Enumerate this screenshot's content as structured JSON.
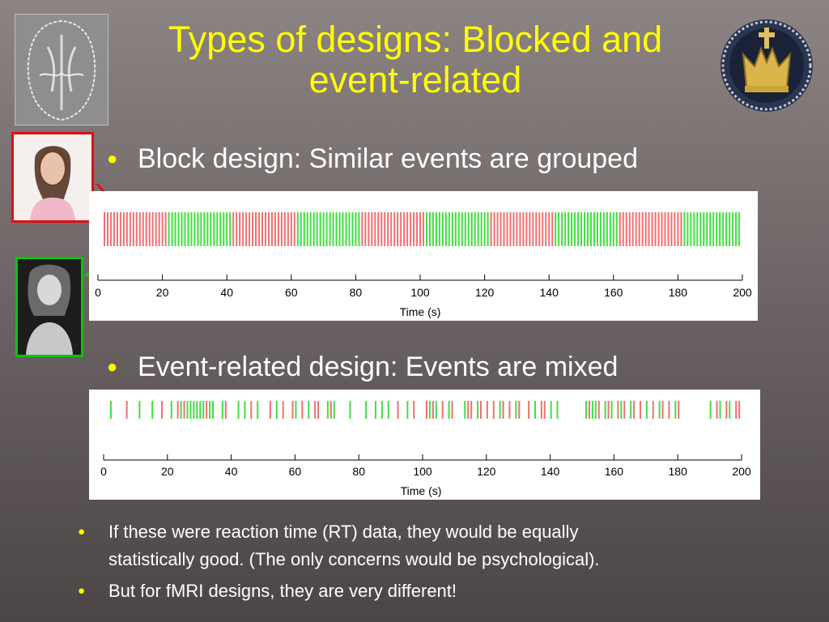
{
  "slide": {
    "title_line1": "Types of designs: Blocked and",
    "title_line2": "event-related",
    "bullet1": "Block design: Similar events are grouped",
    "bullet2": "Event-related design: Events are mixed",
    "bullet3_line1": "If these were reaction time (RT) data, they would be equally",
    "bullet3_line2": "statistically good.  (The only concerns would be psychological).",
    "bullet4": "But for fMRI designs, they are very different!",
    "bullet_glyph": "●",
    "colors": {
      "title": "#ffff00",
      "text": "#ffffff",
      "red_event": "#f07070",
      "green_event": "#40e040"
    }
  },
  "chart_data": [
    {
      "type": "bar",
      "title": "",
      "xlabel": "Time (s)",
      "ylabel": "",
      "xlim": [
        0,
        200
      ],
      "xticks": [
        0,
        20,
        40,
        60,
        80,
        100,
        120,
        140,
        160,
        180,
        200
      ],
      "block_length_s": 20,
      "event_spacing_s": 2,
      "blocks": [
        {
          "start": 0,
          "end": 20,
          "condition": "red"
        },
        {
          "start": 20,
          "end": 40,
          "condition": "green"
        },
        {
          "start": 40,
          "end": 60,
          "condition": "red"
        },
        {
          "start": 60,
          "end": 80,
          "condition": "green"
        },
        {
          "start": 80,
          "end": 100,
          "condition": "red"
        },
        {
          "start": 100,
          "end": 120,
          "condition": "green"
        },
        {
          "start": 120,
          "end": 140,
          "condition": "red"
        },
        {
          "start": 140,
          "end": 160,
          "condition": "green"
        },
        {
          "start": 160,
          "end": 180,
          "condition": "red"
        },
        {
          "start": 180,
          "end": 200,
          "condition": "green"
        }
      ]
    },
    {
      "type": "bar",
      "title": "",
      "xlabel": "Time (s)",
      "ylabel": "",
      "xlim": [
        0,
        200
      ],
      "xticks": [
        0,
        20,
        40,
        60,
        80,
        100,
        120,
        140,
        160,
        180,
        200
      ],
      "events": [
        {
          "t": 1,
          "c": "g"
        },
        {
          "t": 6,
          "c": "r"
        },
        {
          "t": 10,
          "c": "g"
        },
        {
          "t": 14,
          "c": "g"
        },
        {
          "t": 17,
          "c": "r"
        },
        {
          "t": 20,
          "c": "g"
        },
        {
          "t": 22,
          "c": "r"
        },
        {
          "t": 23,
          "c": "g"
        },
        {
          "t": 24,
          "c": "r"
        },
        {
          "t": 25,
          "c": "g"
        },
        {
          "t": 26,
          "c": "g"
        },
        {
          "t": 27,
          "c": "g"
        },
        {
          "t": 28,
          "c": "g"
        },
        {
          "t": 29,
          "c": "g"
        },
        {
          "t": 30,
          "c": "g"
        },
        {
          "t": 31,
          "c": "r"
        },
        {
          "t": 32,
          "c": "g"
        },
        {
          "t": 33,
          "c": "g"
        },
        {
          "t": 36,
          "c": "g"
        },
        {
          "t": 37,
          "c": "r"
        },
        {
          "t": 41,
          "c": "g"
        },
        {
          "t": 43,
          "c": "g"
        },
        {
          "t": 45,
          "c": "r"
        },
        {
          "t": 47,
          "c": "g"
        },
        {
          "t": 51,
          "c": "r"
        },
        {
          "t": 53,
          "c": "g"
        },
        {
          "t": 55,
          "c": "r"
        },
        {
          "t": 58,
          "c": "r"
        },
        {
          "t": 59,
          "c": "g"
        },
        {
          "t": 61,
          "c": "r"
        },
        {
          "t": 63,
          "c": "g"
        },
        {
          "t": 65,
          "c": "r"
        },
        {
          "t": 66,
          "c": "r"
        },
        {
          "t": 69,
          "c": "g"
        },
        {
          "t": 70,
          "c": "r"
        },
        {
          "t": 71,
          "c": "g"
        },
        {
          "t": 76,
          "c": "g"
        },
        {
          "t": 81,
          "c": "g"
        },
        {
          "t": 84,
          "c": "g"
        },
        {
          "t": 86,
          "c": "g"
        },
        {
          "t": 88,
          "c": "g"
        },
        {
          "t": 91,
          "c": "r"
        },
        {
          "t": 94,
          "c": "g"
        },
        {
          "t": 96,
          "c": "r"
        },
        {
          "t": 100,
          "c": "r"
        },
        {
          "t": 101,
          "c": "g"
        },
        {
          "t": 102,
          "c": "r"
        },
        {
          "t": 103,
          "c": "g"
        },
        {
          "t": 105,
          "c": "r"
        },
        {
          "t": 107,
          "c": "g"
        },
        {
          "t": 108,
          "c": "r"
        },
        {
          "t": 112,
          "c": "g"
        },
        {
          "t": 113,
          "c": "r"
        },
        {
          "t": 114,
          "c": "r"
        },
        {
          "t": 116,
          "c": "g"
        },
        {
          "t": 117,
          "c": "r"
        },
        {
          "t": 119,
          "c": "r"
        },
        {
          "t": 121,
          "c": "r"
        },
        {
          "t": 123,
          "c": "g"
        },
        {
          "t": 124,
          "c": "r"
        },
        {
          "t": 126,
          "c": "r"
        },
        {
          "t": 128,
          "c": "g"
        },
        {
          "t": 129,
          "c": "r"
        },
        {
          "t": 132,
          "c": "r"
        },
        {
          "t": 134,
          "c": "g"
        },
        {
          "t": 136,
          "c": "r"
        },
        {
          "t": 137,
          "c": "r"
        },
        {
          "t": 139,
          "c": "g"
        },
        {
          "t": 141,
          "c": "g"
        },
        {
          "t": 150,
          "c": "g"
        },
        {
          "t": 151,
          "c": "r"
        },
        {
          "t": 152,
          "c": "g"
        },
        {
          "t": 153,
          "c": "g"
        },
        {
          "t": 154,
          "c": "r"
        },
        {
          "t": 156,
          "c": "g"
        },
        {
          "t": 157,
          "c": "r"
        },
        {
          "t": 158,
          "c": "g"
        },
        {
          "t": 160,
          "c": "r"
        },
        {
          "t": 161,
          "c": "g"
        },
        {
          "t": 162,
          "c": "r"
        },
        {
          "t": 164,
          "c": "g"
        },
        {
          "t": 165,
          "c": "r"
        },
        {
          "t": 167,
          "c": "r"
        },
        {
          "t": 169,
          "c": "g"
        },
        {
          "t": 171,
          "c": "r"
        },
        {
          "t": 173,
          "c": "g"
        },
        {
          "t": 174,
          "c": "r"
        },
        {
          "t": 176,
          "c": "r"
        },
        {
          "t": 178,
          "c": "g"
        },
        {
          "t": 179,
          "c": "r"
        },
        {
          "t": 189,
          "c": "g"
        },
        {
          "t": 191,
          "c": "r"
        },
        {
          "t": 192,
          "c": "g"
        },
        {
          "t": 194,
          "c": "r"
        },
        {
          "t": 195,
          "c": "g"
        },
        {
          "t": 197,
          "c": "r"
        },
        {
          "t": 198,
          "c": "r"
        }
      ]
    }
  ]
}
